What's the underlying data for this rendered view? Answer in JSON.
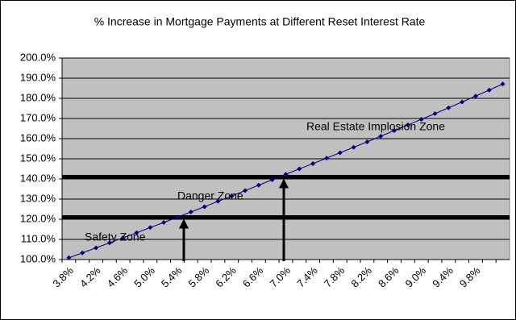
{
  "chart_data": {
    "type": "line",
    "title": "% Increase in Mortgage Payments at Different Reset Interest Rate",
    "categories": [
      "3.8%",
      null,
      "4.2%",
      null,
      "4.6%",
      null,
      "5.0%",
      null,
      "5.4%",
      null,
      "5.8%",
      null,
      "6.2%",
      null,
      "6.6%",
      null,
      "7.0%",
      null,
      "7.4%",
      null,
      "7.8%",
      null,
      "8.2%",
      null,
      "8.6%",
      null,
      "9.0%",
      null,
      "9.4%",
      null,
      "9.8%",
      null,
      null
    ],
    "series": [
      {
        "color": "#000080",
        "values": [
          100.9,
          103.3,
          105.8,
          108.3,
          110.8,
          113.3,
          115.9,
          118.4,
          121.0,
          123.6,
          126.2,
          128.9,
          131.5,
          134.2,
          136.9,
          139.6,
          142.3,
          145.0,
          147.6,
          150.3,
          153.0,
          155.7,
          158.4,
          161.2,
          164.0,
          166.8,
          169.6,
          172.4,
          175.3,
          178.2,
          181.1,
          184.1,
          187.1
        ]
      }
    ],
    "ylim": [
      100,
      200
    ],
    "yticks": [
      {
        "value": 100,
        "label": "100.0%"
      },
      {
        "value": 110,
        "label": "110.0%"
      },
      {
        "value": 120,
        "label": "120.0%"
      },
      {
        "value": 130,
        "label": "130.0%"
      },
      {
        "value": 140,
        "label": "140.0%"
      },
      {
        "value": 150,
        "label": "150.0%"
      },
      {
        "value": 160,
        "label": "160.0%"
      },
      {
        "value": 170,
        "label": "170.0%"
      },
      {
        "value": 180,
        "label": "180.0%"
      },
      {
        "value": 190,
        "label": "190.0%"
      },
      {
        "value": 200,
        "label": "200.0%"
      }
    ],
    "grid": true,
    "thresholds": [
      121,
      141
    ],
    "annotations": [
      "Safety Zone",
      "Danger Zone",
      "Real Estate Implosion Zone"
    ]
  }
}
